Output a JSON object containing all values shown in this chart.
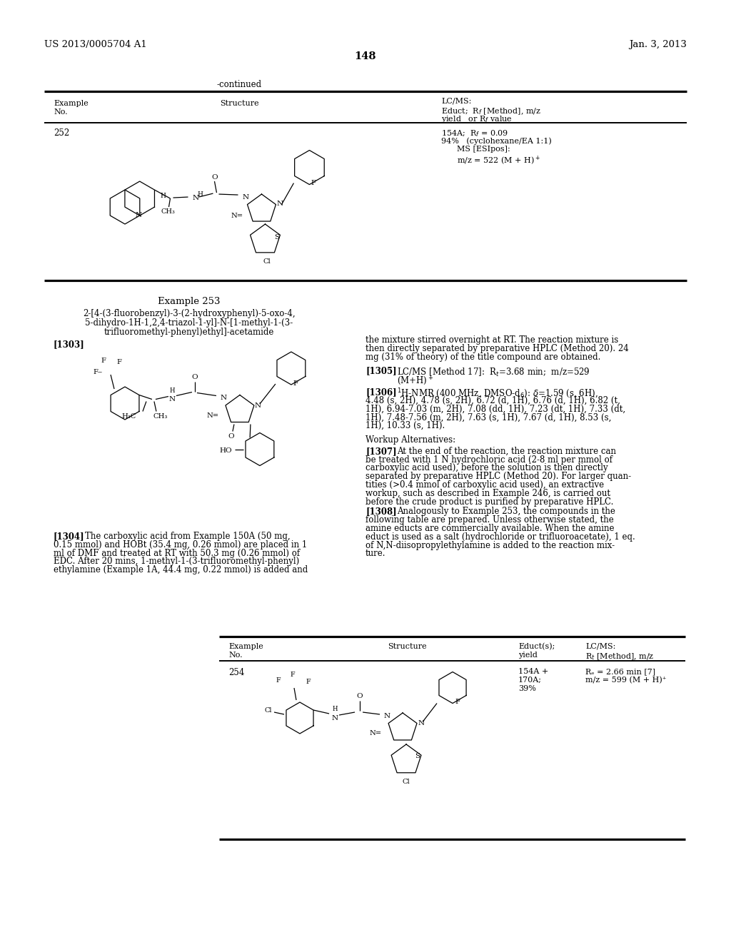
{
  "bg_color": "#ffffff",
  "header_left": "US 2013/0005704 A1",
  "header_right": "Jan. 3, 2013",
  "page_number": "148",
  "continued_text": "-continued",
  "ex252_no": "252",
  "ex252_data": [
    "154A;  Rf = 0.09",
    "94%   (cyclohexane/EA 1:1)",
    "         MS [ESIpos]:",
    "         m/z = 522 (M + H)⁺"
  ],
  "example253_title": "Example 253",
  "example253_name": [
    "2-[4-(3-fluorobenzyl)-3-(2-hydroxyphenyl)-5-oxo-4,",
    "5-dihydro-1H-1,2,4-triazol-1-yl]-N-[1-methyl-1-(3-",
    "trifluoromethyl-phenyl)ethyl]-acetamide"
  ],
  "ref1303": "[1303]",
  "right_intro": [
    "the mixture stirred overnight at RT. The reaction mixture is",
    "then directly separated by preparative HPLC (Method 20). 24",
    "mg (31% of theory) of the title compound are obtained."
  ],
  "ref1305": "[1305]",
  "text1305": [
    "LC/MS [Method 17]:  Rₑ=3.68 min;  m/z=529",
    "(M+H)⁺"
  ],
  "ref1306": "[1306]",
  "text1306": [
    "¹H-NMR (400 MHz, DMSO-d₆): δ=1.59 (s, 6H),",
    "4.48 (s, 2H), 4.78 (s, 2H), 6.72 (d, 1H), 6.76 (d, 1H), 6.82 (t,",
    "1H), 6.94-7.03 (m, 2H), 7.08 (dd, 1H), 7.23 (dt, 1H), 7.33 (dt,",
    "1H), 7.48-7.56 (m, 2H), 7.63 (s, 1H), 7.67 (d, 1H), 8.53 (s,",
    "1H), 10.33 (s, 1H)."
  ],
  "workup_title": "Workup Alternatives:",
  "ref1307": "[1307]",
  "text1307": [
    "At the end of the reaction, the reaction mixture can",
    "be treated with 1 N hydrochloric acid (2-8 ml per mmol of",
    "carboxylic acid used), before the solution is then directly",
    "separated by preparative HPLC (Method 20). For larger quan-",
    "tities (>0.4 mmol of carboxylic acid used), an extractive",
    "workup, such as described in Example 246, is carried out",
    "before the crude product is purified by preparative HPLC."
  ],
  "ref1308": "[1308]",
  "text1308": [
    "Analogously to Example 253, the compounds in the",
    "following table are prepared. Unless otherwise stated, the",
    "amine educts are commercially available. When the amine",
    "educt is used as a salt (hydrochloride or trifluoroacetate), 1 eq.",
    "of N,N-diisopropylethylamine is added to the reaction mix-",
    "ture."
  ],
  "ref1304": "[1304]",
  "text1304": [
    "The carboxylic acid from Example 150A (50 mg,",
    "0.15 mmol) and HOBt (35.4 mg, 0.26 mmol) are placed in 1",
    "ml of DMF and treated at RT with 50.3 mg (0.26 mmol) of",
    "EDC. After 20 mins, 1-methyl-1-(3-trifluoromethyl-phenyl)",
    "ethylamine (Example 1A, 44.4 mg, 0.22 mmol) is added and"
  ],
  "ex254_no": "254",
  "ex254_educt": [
    "154A +",
    "170A;",
    "39%"
  ],
  "ex254_lcms": [
    "Rₑ = 2.66 min [7]",
    "m/z = 599 (M + H)⁺"
  ]
}
